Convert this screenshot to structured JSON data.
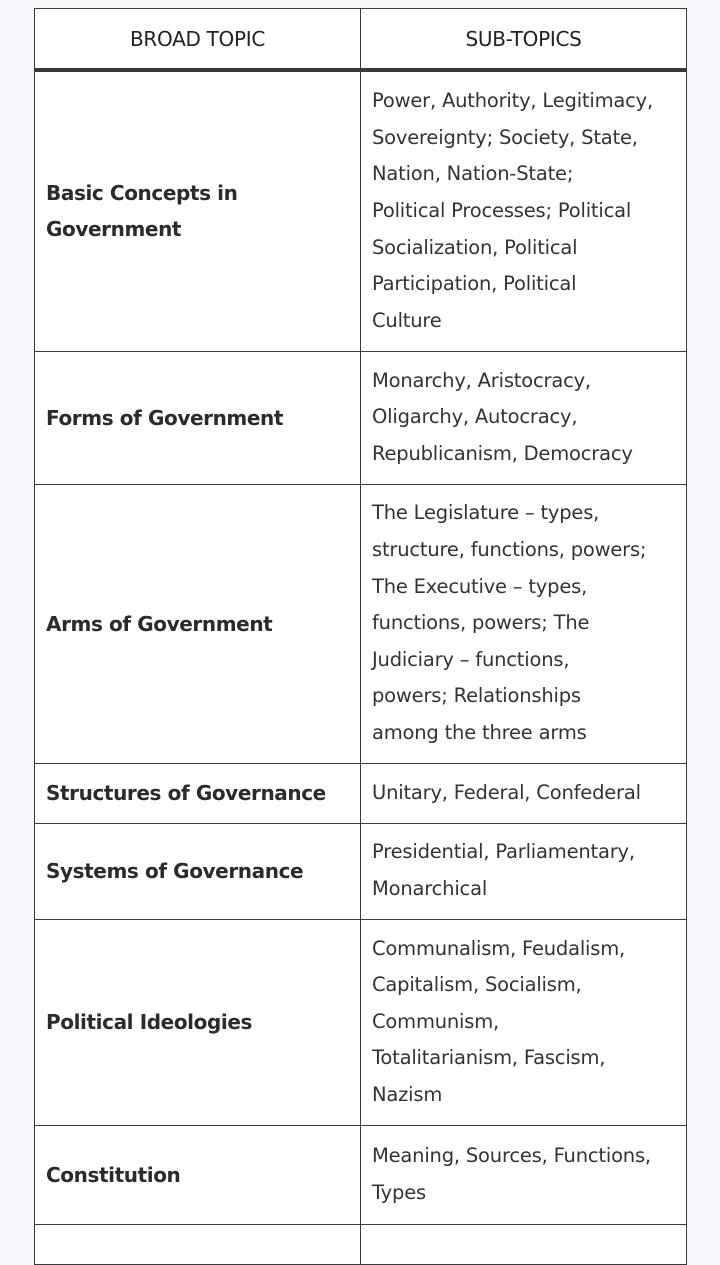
{
  "table": {
    "headers": [
      "BROAD TOPIC",
      "SUB-TOPICS"
    ],
    "rows": [
      {
        "topic": [
          "Basic Concepts in",
          "Government"
        ],
        "subtopics": [
          "Power, Authority, Legitimacy,",
          "Sovereignty; Society, State,",
          "Nation, Nation-State;",
          "Political Processes; Political",
          "Socialization, Political",
          "Participation, Political",
          "Culture"
        ]
      },
      {
        "topic": [
          "Forms of Government"
        ],
        "subtopics": [
          "Monarchy, Aristocracy,",
          "Oligarchy, Autocracy,",
          "Republicanism, Democracy"
        ]
      },
      {
        "topic": [
          "Arms of Government"
        ],
        "subtopics": [
          "The Legislature – types,",
          "structure, functions, powers;",
          "The Executive – types,",
          "functions, powers; The",
          "Judiciary – functions,",
          "powers; Relationships",
          "among the three arms"
        ]
      },
      {
        "topic": [
          "Structures of Governance"
        ],
        "subtopics": [
          "Unitary, Federal, Confederal"
        ]
      },
      {
        "topic": [
          "Systems of Governance"
        ],
        "subtopics": [
          "Presidential, Parliamentary,",
          "Monarchical"
        ]
      },
      {
        "topic": [
          "Political Ideologies"
        ],
        "subtopics": [
          "Communalism, Feudalism,",
          "Capitalism, Socialism,",
          "Communism,",
          "Totalitarianism, Fascism,",
          "Nazism"
        ]
      },
      {
        "topic": [
          "Constitution"
        ],
        "subtopics": [
          "Meaning, Sources, Functions,",
          "Types"
        ]
      },
      {
        "topic": [],
        "subtopics": []
      }
    ]
  }
}
